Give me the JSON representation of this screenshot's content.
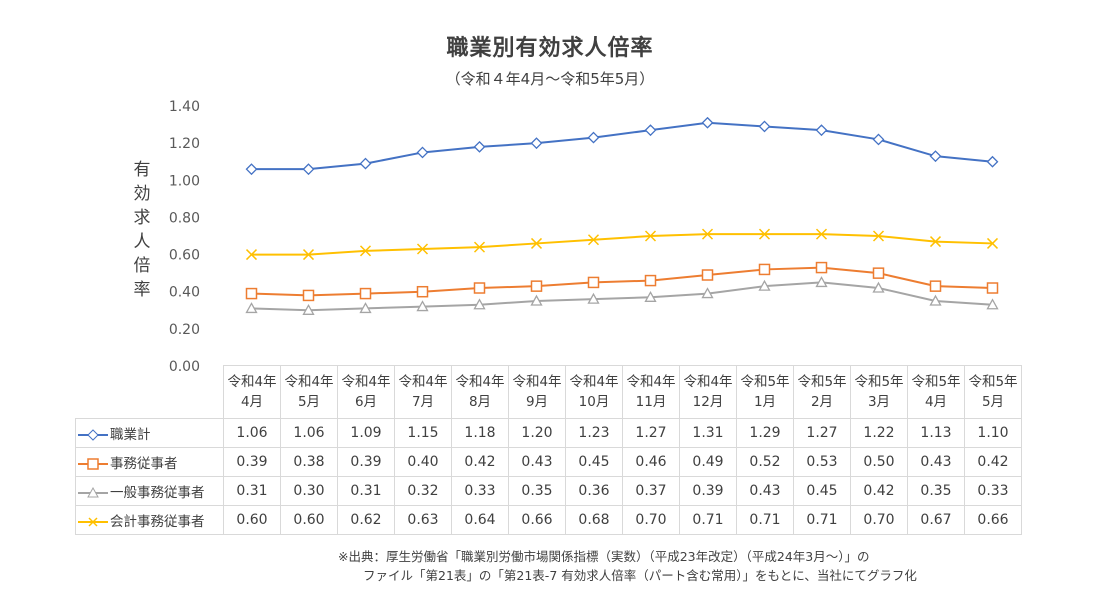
{
  "chart_data": {
    "type": "line",
    "title": "職業別有効求人倍率",
    "subtitle": "（令和４年4月～令和5年5月）",
    "ylabel": "有効求人倍率",
    "ylim": [
      0,
      1.4
    ],
    "yticks": [
      "0.00",
      "0.20",
      "0.40",
      "0.60",
      "0.80",
      "1.00",
      "1.20",
      "1.40"
    ],
    "categories": [
      [
        "令和4年",
        "4月"
      ],
      [
        "令和4年",
        "5月"
      ],
      [
        "令和4年",
        "6月"
      ],
      [
        "令和4年",
        "7月"
      ],
      [
        "令和4年",
        "8月"
      ],
      [
        "令和4年",
        "9月"
      ],
      [
        "令和4年",
        "10月"
      ],
      [
        "令和4年",
        "11月"
      ],
      [
        "令和4年",
        "12月"
      ],
      [
        "令和5年",
        "1月"
      ],
      [
        "令和5年",
        "2月"
      ],
      [
        "令和5年",
        "3月"
      ],
      [
        "令和5年",
        "4月"
      ],
      [
        "令和5年",
        "5月"
      ]
    ],
    "grid": false,
    "legend": "data-table",
    "series": [
      {
        "name": "職業計",
        "color": "#4472C4",
        "marker": "diamond",
        "values": [
          1.06,
          1.06,
          1.09,
          1.15,
          1.18,
          1.2,
          1.23,
          1.27,
          1.31,
          1.29,
          1.27,
          1.22,
          1.13,
          1.1
        ],
        "labels": [
          "1.06",
          "1.06",
          "1.09",
          "1.15",
          "1.18",
          "1.20",
          "1.23",
          "1.27",
          "1.31",
          "1.29",
          "1.27",
          "1.22",
          "1.13",
          "1.10"
        ]
      },
      {
        "name": "事務従事者",
        "color": "#ED7D31",
        "marker": "square",
        "values": [
          0.39,
          0.38,
          0.39,
          0.4,
          0.42,
          0.43,
          0.45,
          0.46,
          0.49,
          0.52,
          0.53,
          0.5,
          0.43,
          0.42
        ],
        "labels": [
          "0.39",
          "0.38",
          "0.39",
          "0.40",
          "0.42",
          "0.43",
          "0.45",
          "0.46",
          "0.49",
          "0.52",
          "0.53",
          "0.50",
          "0.43",
          "0.42"
        ]
      },
      {
        "name": "一般事務従事者",
        "color": "#A5A5A5",
        "marker": "triangle",
        "values": [
          0.31,
          0.3,
          0.31,
          0.32,
          0.33,
          0.35,
          0.36,
          0.37,
          0.39,
          0.43,
          0.45,
          0.42,
          0.35,
          0.33
        ],
        "labels": [
          "0.31",
          "0.30",
          "0.31",
          "0.32",
          "0.33",
          "0.35",
          "0.36",
          "0.37",
          "0.39",
          "0.43",
          "0.45",
          "0.42",
          "0.35",
          "0.33"
        ]
      },
      {
        "name": "会計事務従事者",
        "color": "#FFC000",
        "marker": "x",
        "values": [
          0.6,
          0.6,
          0.62,
          0.63,
          0.64,
          0.66,
          0.68,
          0.7,
          0.71,
          0.71,
          0.71,
          0.7,
          0.67,
          0.66
        ],
        "labels": [
          "0.60",
          "0.60",
          "0.62",
          "0.63",
          "0.64",
          "0.66",
          "0.68",
          "0.70",
          "0.71",
          "0.71",
          "0.71",
          "0.70",
          "0.67",
          "0.66"
        ]
      }
    ]
  },
  "footnote": {
    "line1": "※出典：厚生労働省「職業別労働市場関係指標（実数）（平成23年改定）（平成24年3月～）」の",
    "line2": "ファイル「第21表」の「第21表-7 有効求人倍率（パート含む常用）」をもとに、当社にてグラフ化"
  }
}
